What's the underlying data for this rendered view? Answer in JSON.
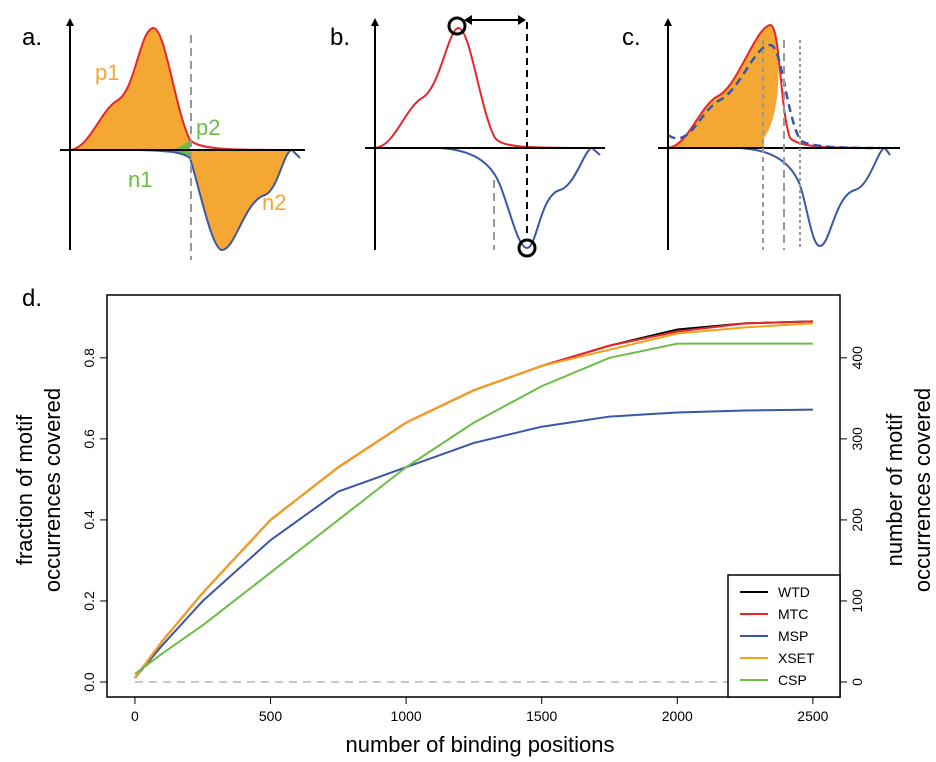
{
  "diagrams": {
    "a": {
      "label": "a.",
      "p1": "p1",
      "p2": "p2",
      "n1": "n1",
      "n2": "n2"
    },
    "b": {
      "label": "b."
    },
    "c": {
      "label": "c."
    },
    "d": {
      "label": "d."
    }
  },
  "chart_data": {
    "type": "line",
    "xlabel": "number of binding positions",
    "ylabel": [
      "fraction of motif",
      "occurrences covered"
    ],
    "y2label": [
      "number of motif",
      "occurrences covered"
    ],
    "x": [
      0,
      100,
      250,
      500,
      750,
      1000,
      1250,
      1500,
      1750,
      2000,
      2250,
      2500
    ],
    "series": [
      {
        "name": "WTD",
        "color": "#000000",
        "values": [
          0.01,
          0.1,
          0.22,
          0.4,
          0.53,
          0.64,
          0.72,
          0.78,
          0.83,
          0.87,
          0.885,
          0.89
        ]
      },
      {
        "name": "MTC",
        "color": "#e8262a",
        "values": [
          0.01,
          0.1,
          0.22,
          0.4,
          0.53,
          0.64,
          0.72,
          0.78,
          0.83,
          0.865,
          0.885,
          0.89
        ]
      },
      {
        "name": "MSP",
        "color": "#3a56a7",
        "values": [
          0.01,
          0.09,
          0.2,
          0.35,
          0.47,
          0.53,
          0.59,
          0.63,
          0.655,
          0.665,
          0.67,
          0.672
        ]
      },
      {
        "name": "XSET",
        "color": "#f7a11a",
        "values": [
          0.01,
          0.1,
          0.22,
          0.4,
          0.53,
          0.64,
          0.72,
          0.78,
          0.82,
          0.86,
          0.875,
          0.885
        ]
      },
      {
        "name": "CSP",
        "color": "#6cbd45",
        "values": [
          0.02,
          0.07,
          0.14,
          0.27,
          0.4,
          0.53,
          0.64,
          0.73,
          0.8,
          0.835,
          0.835,
          0.835
        ]
      }
    ],
    "reference_line": 0,
    "xlim": [
      -103,
      2600
    ],
    "ylim": [
      -0.037,
      0.955
    ],
    "y2lim": [
      -18.5,
      477.5
    ],
    "xticks": [
      0,
      500,
      1000,
      1500,
      2000,
      2500
    ],
    "yticks": [
      {
        "value": 0,
        "label": "0.0"
      },
      0.2,
      0.4,
      0.6,
      0.8
    ],
    "y2ticks": [
      0,
      100,
      200,
      300,
      400
    ],
    "legend": "bottom-right"
  }
}
